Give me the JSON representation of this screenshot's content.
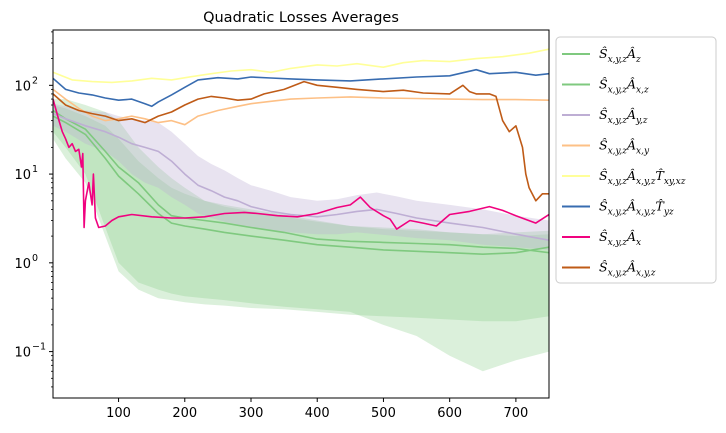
{
  "chart_data": {
    "type": "line",
    "title": "Quadratic Losses Averages",
    "xlabel": "",
    "ylabel": "",
    "xlim": [
      1,
      750
    ],
    "ylim": [
      0.03,
      420
    ],
    "yscale": "log",
    "grid": false,
    "legend_position": "outside-right",
    "x_ticks": [
      100,
      200,
      300,
      400,
      500,
      600,
      700
    ],
    "y_ticks": [
      {
        "value": 0.1,
        "base": "10",
        "exp": "−1"
      },
      {
        "value": 1,
        "base": "10",
        "exp": "0"
      },
      {
        "value": 10,
        "base": "10",
        "exp": "1"
      },
      {
        "value": 100,
        "base": "10",
        "exp": "2"
      }
    ],
    "series": [
      {
        "name": "Ŝx,y,zÂz",
        "legend_main": "Ŝ",
        "legend_sub": "x,y,z",
        "legend_main2": "Â",
        "legend_sub2": "z",
        "legend_main3": "",
        "legend_sub3": "",
        "color": "#7fc97f",
        "band_color": "#7fc97f",
        "band_opacity": 0.28,
        "x": [
          1,
          20,
          50,
          80,
          100,
          130,
          160,
          180,
          200,
          230,
          260,
          300,
          350,
          400,
          450,
          500,
          550,
          600,
          650,
          700,
          750
        ],
        "y": [
          52,
          42,
          32,
          18,
          12,
          8,
          4.5,
          3.4,
          3.2,
          3.0,
          2.8,
          2.5,
          2.2,
          1.85,
          1.75,
          1.7,
          1.65,
          1.6,
          1.5,
          1.45,
          1.3
        ],
        "band_low": [
          30,
          20,
          10,
          2.5,
          1.0,
          0.6,
          0.5,
          0.45,
          0.42,
          0.4,
          0.38,
          0.35,
          0.32,
          0.3,
          0.28,
          0.2,
          0.15,
          0.09,
          0.06,
          0.08,
          0.1
        ],
        "band_high": [
          70,
          70,
          60,
          50,
          40,
          20,
          12,
          9,
          7,
          5,
          4.5,
          4,
          3.5,
          3,
          2.6,
          2.5,
          2.4,
          2.2,
          2.1,
          2.2,
          2.3
        ]
      },
      {
        "name": "Ŝx,y,zÂx,z",
        "legend_main": "Ŝ",
        "legend_sub": "x,y,z",
        "legend_main2": "Â",
        "legend_sub2": "x,z",
        "legend_main3": "",
        "legend_sub3": "",
        "color": "#7fc97f",
        "band_color": "#7fc97f",
        "band_opacity": 0.28,
        "x": [
          1,
          20,
          50,
          80,
          100,
          130,
          160,
          180,
          200,
          230,
          260,
          300,
          350,
          400,
          450,
          500,
          550,
          600,
          650,
          700,
          750
        ],
        "y": [
          45,
          38,
          28,
          15,
          9.5,
          6,
          3.6,
          2.8,
          2.6,
          2.4,
          2.2,
          2.0,
          1.8,
          1.6,
          1.5,
          1.4,
          1.35,
          1.3,
          1.25,
          1.3,
          1.5
        ],
        "band_low": [
          25,
          15,
          8,
          2.0,
          0.8,
          0.5,
          0.4,
          0.38,
          0.36,
          0.34,
          0.33,
          0.31,
          0.3,
          0.28,
          0.26,
          0.25,
          0.24,
          0.23,
          0.22,
          0.22,
          0.25
        ],
        "band_high": [
          60,
          55,
          45,
          35,
          25,
          14,
          9,
          7,
          6,
          5,
          4.3,
          3.8,
          3.3,
          2.9,
          2.6,
          2.4,
          2.3,
          2.2,
          2.1,
          2.0,
          2.1
        ]
      },
      {
        "name": "Ŝx,y,zÂy,z",
        "legend_main": "Ŝ",
        "legend_sub": "x,y,z",
        "legend_main2": "Â",
        "legend_sub2": "y,z",
        "legend_main3": "",
        "legend_sub3": "",
        "color": "#beaed4",
        "band_color": "#beaed4",
        "band_opacity": 0.35,
        "x": [
          1,
          20,
          50,
          80,
          100,
          120,
          140,
          160,
          180,
          200,
          220,
          240,
          260,
          280,
          300,
          330,
          360,
          400,
          430,
          460,
          490,
          520,
          550,
          600,
          650,
          700,
          750
        ],
        "y": [
          48,
          42,
          35,
          30,
          26,
          22,
          20,
          18,
          14,
          10,
          7.5,
          6.5,
          5.5,
          5,
          4.3,
          3.8,
          3.5,
          3.3,
          3.5,
          3.8,
          4.0,
          3.6,
          3.2,
          2.8,
          2.5,
          2.1,
          1.8
        ],
        "band_low": [
          35,
          30,
          22,
          18,
          14,
          10,
          8,
          7,
          5.5,
          4.5,
          3.6,
          3.2,
          2.9,
          2.7,
          2.5,
          2.3,
          2.2,
          2.1,
          2.1,
          2.2,
          2.1,
          2.0,
          1.9,
          1.8,
          1.6,
          1.5,
          1.4
        ],
        "band_high": [
          62,
          58,
          52,
          50,
          45,
          42,
          40,
          38,
          30,
          22,
          16,
          13,
          11,
          9,
          7.5,
          6.5,
          5.5,
          5.0,
          5.2,
          5.8,
          6.2,
          5.6,
          5.0,
          4.5,
          4.0,
          3.4,
          3.0
        ]
      },
      {
        "name": "Ŝx,y,zÂx,y",
        "legend_main": "Ŝ",
        "legend_sub": "x,y,z",
        "legend_main2": "Â",
        "legend_sub2": "x,y",
        "legend_main3": "",
        "legend_sub3": "",
        "color": "#fdc086",
        "x": [
          1,
          20,
          40,
          60,
          80,
          100,
          120,
          140,
          160,
          180,
          200,
          220,
          250,
          280,
          300,
          330,
          360,
          400,
          450,
          500,
          550,
          600,
          650,
          700,
          750
        ],
        "y": [
          90,
          70,
          55,
          45,
          40,
          42,
          45,
          42,
          38,
          40,
          36,
          45,
          52,
          58,
          62,
          66,
          70,
          72,
          74,
          72,
          71,
          70,
          69,
          69,
          68
        ]
      },
      {
        "name": "Ŝx,y,zÂx,y,zŤxy,xz",
        "legend_main": "Ŝ",
        "legend_sub": "x,y,z",
        "legend_main2": "Â",
        "legend_sub2": "x,y,z",
        "legend_main3": "T̂",
        "legend_sub3": "xy,xz",
        "color": "#ffff99",
        "x": [
          1,
          30,
          60,
          90,
          120,
          150,
          180,
          210,
          240,
          270,
          300,
          330,
          360,
          400,
          430,
          460,
          500,
          530,
          560,
          600,
          640,
          680,
          720,
          750
        ],
        "y": [
          140,
          115,
          110,
          108,
          112,
          120,
          115,
          125,
          135,
          145,
          150,
          140,
          155,
          170,
          165,
          175,
          160,
          180,
          190,
          185,
          200,
          210,
          230,
          255
        ]
      },
      {
        "name": "Ŝx,y,zÂx,y,zŤyz",
        "legend_main": "Ŝ",
        "legend_sub": "x,y,z",
        "legend_main2": "Â",
        "legend_sub2": "x,y,z",
        "legend_main3": "T̂",
        "legend_sub3": "yz",
        "color": "#386cb0",
        "x": [
          1,
          20,
          40,
          60,
          80,
          100,
          120,
          140,
          150,
          160,
          180,
          200,
          220,
          250,
          280,
          300,
          330,
          360,
          400,
          450,
          500,
          550,
          600,
          640,
          660,
          700,
          730,
          750
        ],
        "y": [
          120,
          90,
          82,
          78,
          72,
          68,
          70,
          62,
          58,
          65,
          78,
          95,
          115,
          122,
          118,
          124,
          121,
          118,
          115,
          112,
          118,
          124,
          128,
          150,
          135,
          140,
          130,
          135
        ]
      },
      {
        "name": "Ŝx,y,zÂx",
        "legend_main": "Ŝ",
        "legend_sub": "x,y,z",
        "legend_main2": "Â",
        "legend_sub2": "x",
        "legend_main3": "",
        "legend_sub3": "",
        "color": "#f0027f",
        "x": [
          1,
          10,
          15,
          20,
          25,
          30,
          35,
          40,
          44,
          46,
          48,
          50,
          55,
          60,
          62,
          65,
          70,
          80,
          90,
          100,
          120,
          150,
          180,
          200,
          230,
          260,
          290,
          310,
          340,
          370,
          400,
          430,
          450,
          465,
          480,
          500,
          510,
          520,
          540,
          560,
          580,
          600,
          630,
          660,
          680,
          700,
          730,
          750
        ],
        "y": [
          70,
          40,
          30,
          25,
          20,
          22,
          18,
          19,
          12,
          17,
          2.5,
          5.0,
          8,
          4.5,
          10,
          3.2,
          2.5,
          2.6,
          3.0,
          3.3,
          3.5,
          3.3,
          3.2,
          3.2,
          3.3,
          3.6,
          3.7,
          3.6,
          3.4,
          3.3,
          3.6,
          4.2,
          4.5,
          5.5,
          4.2,
          3.4,
          3.1,
          2.4,
          3.0,
          2.8,
          2.6,
          3.5,
          3.8,
          4.3,
          3.9,
          3.4,
          2.8,
          3.5
        ]
      },
      {
        "name": "Ŝx,y,zÂx,y,z",
        "legend_main": "Ŝ",
        "legend_sub": "x,y,z",
        "legend_main2": "Â",
        "legend_sub2": "x,y,z",
        "legend_main3": "",
        "legend_sub3": "",
        "color": "#bf5b17",
        "x": [
          1,
          20,
          40,
          60,
          80,
          100,
          120,
          140,
          160,
          180,
          200,
          220,
          240,
          260,
          280,
          300,
          320,
          350,
          380,
          400,
          430,
          460,
          500,
          530,
          560,
          600,
          620,
          630,
          640,
          660,
          670,
          680,
          690,
          700,
          710,
          715,
          720,
          730,
          740,
          750
        ],
        "y": [
          80,
          60,
          52,
          48,
          45,
          40,
          42,
          38,
          45,
          50,
          60,
          70,
          75,
          72,
          68,
          70,
          80,
          90,
          110,
          100,
          95,
          90,
          85,
          88,
          82,
          80,
          100,
          85,
          80,
          80,
          75,
          40,
          30,
          35,
          20,
          10,
          7,
          5,
          6,
          6
        ]
      }
    ]
  }
}
